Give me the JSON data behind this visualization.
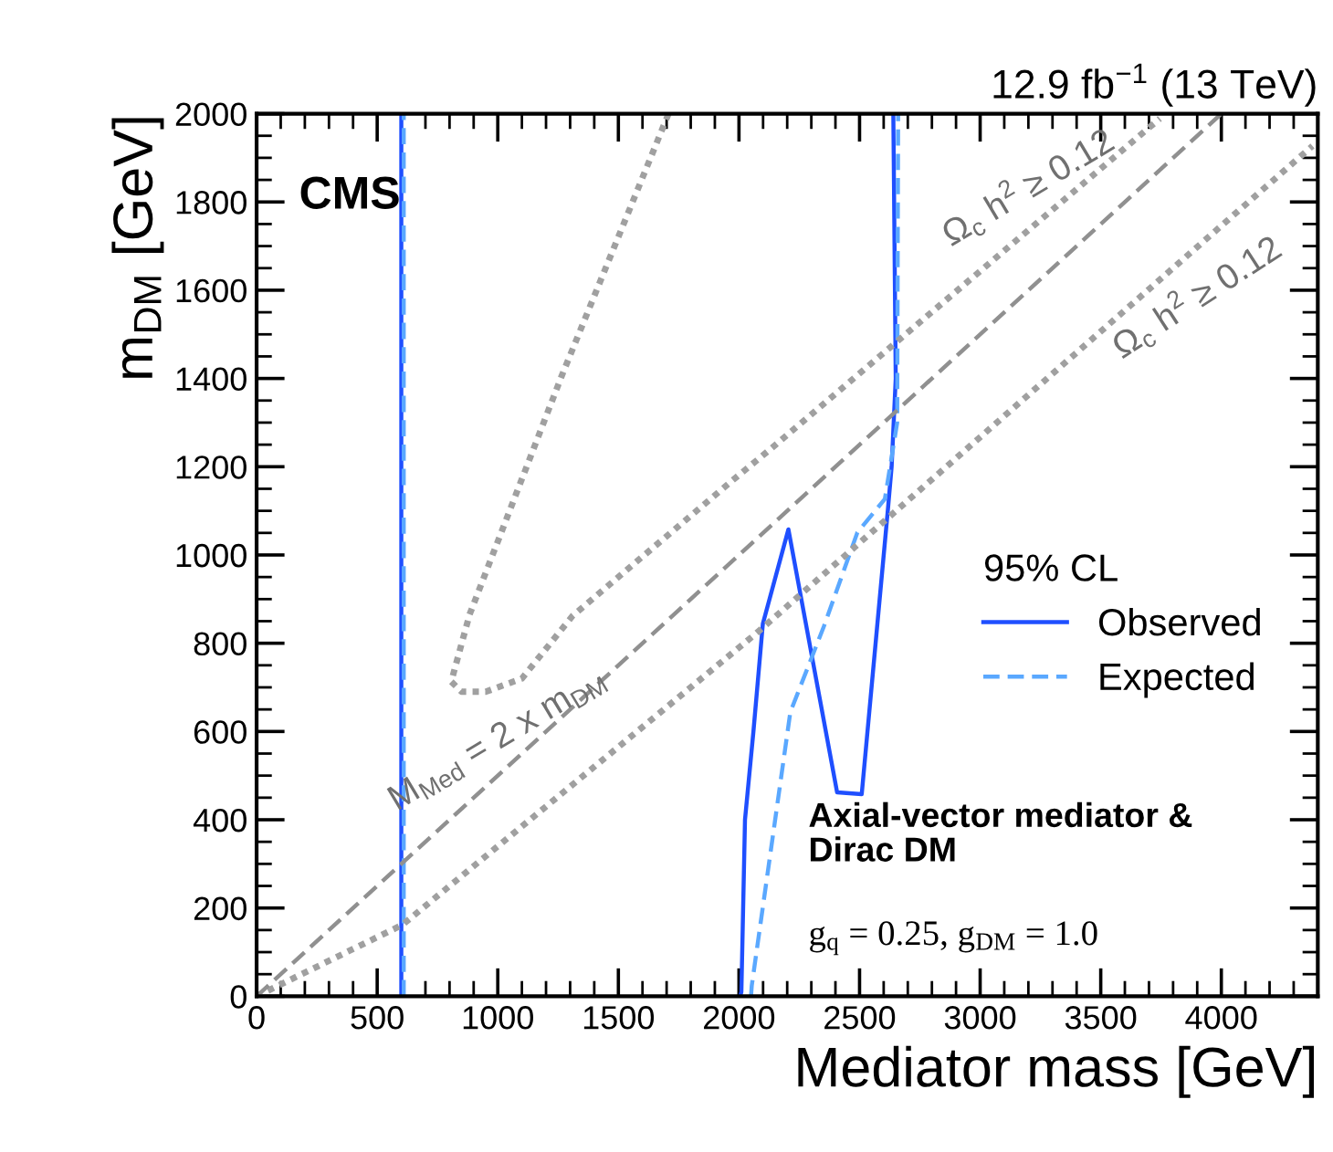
{
  "chart_data": {
    "type": "line",
    "title": "12.9 fb$^{−1}$ (13 TeV)",
    "xlabel": "Mediator mass [GeV]",
    "ylabel": "m$_{DM}$ [GeV]",
    "legend_title": "95% CL",
    "xlim": [
      0,
      4400
    ],
    "xticks": [
      0,
      500,
      1000,
      1500,
      2000,
      2500,
      3000,
      3500,
      4000
    ],
    "ylim": [
      0,
      2000
    ],
    "yticks": [
      0,
      200,
      400,
      600,
      800,
      1000,
      1200,
      1400,
      1600,
      1800,
      2000
    ],
    "grid": false,
    "legend": "right",
    "series": [
      {
        "name": "Observed",
        "color": "#1f4fff",
        "line_style": "solid",
        "x": [
          600,
          600
        ],
        "values": [
          0,
          2000
        ]
      },
      {
        "color": "#1f4fff",
        "line_style": "solid",
        "x": [
          2005,
          2010,
          2025,
          2060,
          2099,
          2205,
          2407,
          2509,
          2618,
          2633,
          2650,
          2645,
          2640
        ],
        "values": [
          0,
          10,
          400,
          600,
          844,
          1058,
          462,
          458,
          1106,
          1200,
          1400,
          1700,
          2000
        ]
      },
      {
        "name": "Expected",
        "color": "#5aa8ff",
        "line_style": "dashed",
        "x": [
          610,
          610
        ],
        "values": [
          0,
          2000
        ]
      },
      {
        "color": "#5aa8ff",
        "line_style": "dashed",
        "x": [
          2050,
          2053,
          2213,
          2352,
          2491,
          2605,
          2656,
          2660
        ],
        "values": [
          0,
          24,
          644,
          838,
          1051,
          1127,
          1300,
          2000
        ]
      },
      {
        "color": "#a0a0a0",
        "line_style": "dotted",
        "x": [
          1708,
          1263,
          883,
          807,
          850,
          950,
          1100,
          1310,
          1971,
          2124,
          3745
        ],
        "values": [
          2000,
          1403,
          865,
          713,
          690,
          690,
          720,
          862,
          1168,
          1237,
          1989
        ]
      },
      {
        "color": "#a0a0a0",
        "line_style": "dotted",
        "x": [
          0,
          605,
          2073,
          4378
        ],
        "values": [
          0,
          162,
          823,
          1927
        ]
      },
      {
        "color": "#909090",
        "line_style": "dashed",
        "x": [
          0,
          4000
        ],
        "values": [
          0,
          2000
        ]
      }
    ],
    "annotations": [
      "CMS",
      {
        "text": "Ω$_{c}$ h$^{2}$ ≥ 0.12",
        "x": 3200,
        "y": 1740
      },
      {
        "text": "Ω$_{c}$ h$^{2}$ ≥ 0.12",
        "x": 3900,
        "y": 1698
      },
      {
        "text": "M$_{Med}$ = 2 x m$_{DM}$",
        "x": 1000,
        "y": 500
      },
      "Axial-vector mediator &\nDirac DM",
      "g$_{q}$ = 0.25, g$_{DM}$ = 1.0"
    ]
  }
}
